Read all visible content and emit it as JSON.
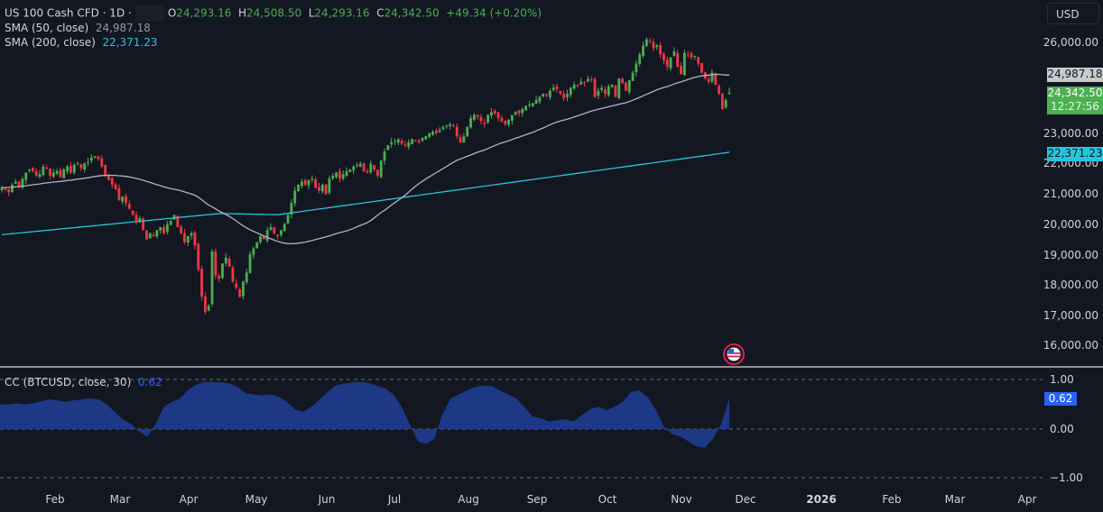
{
  "header": {
    "symbol": "US 100 Cash CFD · 1D ·",
    "ohlc": {
      "o_label": "O",
      "o": "24,293.16",
      "h_label": "H",
      "h": "24,508.50",
      "l_label": "L",
      "l": "24,293.16",
      "c_label": "C",
      "c": "24,342.50",
      "change": "+49.34 (+0.20%)"
    },
    "sma50_label": "SMA (50, close)",
    "sma50_value": "24,987.18",
    "sma200_label": "SMA (200, close)",
    "sma200_value": "22,371.23",
    "currency_button": "USD"
  },
  "price_axis": {
    "ticks": [
      "26,000.00",
      "23,000.00",
      "22,000.00",
      "21,000.00",
      "20,000.00",
      "19,000.00",
      "18,000.00",
      "17,000.00",
      "16,000.00"
    ],
    "tags": {
      "sma50": "24,987.18",
      "last_price": "24,342.50",
      "countdown": "12:27:56",
      "sma200": "22,371.23"
    }
  },
  "indicator": {
    "label": "CC (BTCUSD, close, 30)",
    "value": "0.62",
    "ticks": [
      "1.00",
      "0.00",
      "−1.00"
    ],
    "tag": "0.62"
  },
  "time_axis": {
    "labels": [
      "Feb",
      "Mar",
      "Apr",
      "May",
      "Jun",
      "Jul",
      "Aug",
      "Sep",
      "Oct",
      "Nov",
      "Dec",
      "2026",
      "Feb",
      "Mar",
      "Apr"
    ]
  },
  "colors": {
    "background": "#131722",
    "up": "#4caf50",
    "down": "#f23645",
    "sma50": "#b2b5be",
    "sma200": "#26c6da",
    "cc_fill": "#1e3a8a",
    "cc_tag": "#2962ff",
    "last_price_tag": "#4caf50"
  },
  "chart_data": [
    {
      "type": "candlestick",
      "title": "US 100 Cash CFD · 1D",
      "ylabel": "USD",
      "ylim": [
        15700,
        26400
      ],
      "y_ticks": [
        16000,
        17000,
        18000,
        19000,
        20000,
        21000,
        22000,
        23000,
        26000
      ],
      "x_ticks": [
        "Feb",
        "Mar",
        "Apr",
        "May",
        "Jun",
        "Jul",
        "Aug",
        "Sep",
        "Oct",
        "Nov",
        "Dec",
        "2026",
        "Feb",
        "Mar",
        "Apr"
      ],
      "last": {
        "open": 24293.16,
        "high": 24508.5,
        "low": 24293.16,
        "close": 24342.5,
        "change": 49.34,
        "change_pct": 0.2
      },
      "closes": [
        21200,
        21150,
        21050,
        21300,
        21400,
        21250,
        21500,
        21700,
        21800,
        21750,
        21600,
        21650,
        21900,
        21850,
        21600,
        21700,
        21750,
        21550,
        21800,
        21900,
        21700,
        21950,
        22000,
        21850,
        22000,
        22050,
        22200,
        22250,
        22150,
        21900,
        21600,
        21450,
        21300,
        21150,
        20800,
        20900,
        20700,
        20500,
        20300,
        20100,
        20200,
        19800,
        19500,
        19700,
        19600,
        19800,
        19900,
        19700,
        20000,
        20100,
        20300,
        19900,
        19700,
        19400,
        19600,
        19700,
        19300,
        18500,
        17600,
        17100,
        17300,
        19100,
        18300,
        18200,
        18700,
        18900,
        18600,
        18100,
        17900,
        17600,
        18100,
        18400,
        19000,
        19200,
        19400,
        19600,
        19500,
        19800,
        19900,
        19700,
        19600,
        19800,
        20000,
        20300,
        20700,
        21100,
        21300,
        21400,
        21300,
        21450,
        21500,
        21200,
        21100,
        21300,
        21000,
        21500,
        21600,
        21700,
        21500,
        21650,
        21750,
        21800,
        21900,
        21950,
        22000,
        21750,
        21700,
        22000,
        21800,
        21600,
        22100,
        22400,
        22600,
        22700,
        22750,
        22800,
        22650,
        22600,
        22700,
        22800,
        22750,
        22700,
        22850,
        22900,
        23000,
        23050,
        23000,
        23100,
        23200,
        23250,
        23300,
        23250,
        22900,
        22700,
        22900,
        23200,
        23500,
        23600,
        23550,
        23400,
        23300,
        23600,
        23700,
        23650,
        23500,
        23400,
        23300,
        23450,
        23600,
        23700,
        23650,
        23800,
        23900,
        23950,
        24000,
        24100,
        24200,
        24300,
        24250,
        24400,
        24500,
        24450,
        24300,
        24150,
        24300,
        24500,
        24600,
        24550,
        24700,
        24650,
        24800,
        24750,
        24200,
        24400,
        24500,
        24300,
        24550,
        24600,
        24200,
        24800,
        24650,
        24400,
        24750,
        25000,
        25300,
        25600,
        25900,
        26100,
        26050,
        25800,
        25900,
        25600,
        25400,
        25200,
        25500,
        25700,
        25200,
        24950,
        25650,
        25600,
        25500,
        25550,
        25300,
        25000,
        24800,
        24700,
        25000,
        24600,
        24300,
        23800,
        24100,
        24342.5
      ],
      "sma50_last": 24987.18,
      "sma200_last": 22371.23
    },
    {
      "type": "area",
      "title": "CC (BTCUSD, close, 30)",
      "ylim": [
        -1,
        1
      ],
      "y_ticks": [
        -1,
        0,
        1
      ],
      "last": 0.62,
      "values": [
        0.5,
        0.5,
        0.52,
        0.5,
        0.52,
        0.56,
        0.6,
        0.58,
        0.55,
        0.58,
        0.6,
        0.62,
        0.6,
        0.5,
        0.35,
        0.2,
        0.1,
        -0.05,
        -0.15,
        0.1,
        0.45,
        0.55,
        0.62,
        0.8,
        0.9,
        0.95,
        0.95,
        0.94,
        0.92,
        0.85,
        0.72,
        0.7,
        0.68,
        0.7,
        0.65,
        0.55,
        0.4,
        0.35,
        0.45,
        0.6,
        0.75,
        0.88,
        0.92,
        0.94,
        0.95,
        0.93,
        0.88,
        0.82,
        0.7,
        0.45,
        0.1,
        -0.25,
        -0.3,
        -0.2,
        0.3,
        0.62,
        0.7,
        0.78,
        0.85,
        0.88,
        0.87,
        0.78,
        0.7,
        0.62,
        0.45,
        0.25,
        0.22,
        0.15,
        0.18,
        0.2,
        0.15,
        0.28,
        0.4,
        0.45,
        0.38,
        0.45,
        0.55,
        0.75,
        0.78,
        0.65,
        0.4,
        0.05,
        -0.1,
        -0.15,
        -0.25,
        -0.35,
        -0.38,
        -0.2,
        0.1,
        0.62
      ]
    }
  ]
}
